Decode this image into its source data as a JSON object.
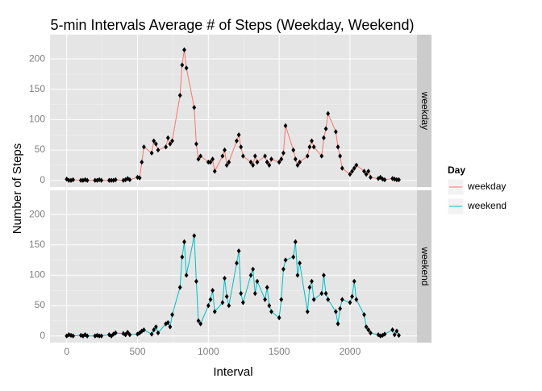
{
  "chart_data": {
    "type": "line",
    "title": "5-min Intervals Average # of Steps (Weekday, Weekend)",
    "x_label": "Interval",
    "y_label": "Number of Steps",
    "legend_title": "Day",
    "x": [
      0,
      15,
      30,
      45,
      100,
      115,
      130,
      145,
      200,
      215,
      230,
      245,
      300,
      315,
      330,
      345,
      400,
      415,
      430,
      445,
      500,
      515,
      530,
      545,
      600,
      615,
      630,
      645,
      700,
      715,
      730,
      745,
      800,
      815,
      830,
      845,
      900,
      915,
      930,
      945,
      1000,
      1015,
      1030,
      1045,
      1100,
      1115,
      1130,
      1145,
      1200,
      1215,
      1230,
      1245,
      1300,
      1315,
      1330,
      1345,
      1400,
      1415,
      1430,
      1445,
      1500,
      1515,
      1530,
      1545,
      1600,
      1615,
      1630,
      1645,
      1700,
      1715,
      1730,
      1745,
      1800,
      1815,
      1830,
      1845,
      1900,
      1915,
      1930,
      1945,
      2000,
      2015,
      2030,
      2045,
      2100,
      2115,
      2130,
      2145,
      2200,
      2215,
      2230,
      2245,
      2300,
      2315,
      2330,
      2345
    ],
    "series": [
      {
        "name": "weekday",
        "color": "#F8766D",
        "values": [
          2,
          0,
          0,
          1,
          0,
          0,
          1,
          0,
          0,
          0,
          1,
          0,
          0,
          0,
          0,
          1,
          0,
          1,
          3,
          1,
          5,
          4,
          30,
          55,
          45,
          65,
          60,
          50,
          55,
          70,
          60,
          65,
          140,
          190,
          215,
          185,
          120,
          60,
          35,
          40,
          30,
          30,
          35,
          15,
          40,
          50,
          25,
          30,
          65,
          75,
          55,
          40,
          30,
          25,
          40,
          30,
          40,
          30,
          25,
          35,
          30,
          35,
          45,
          90,
          50,
          35,
          25,
          30,
          40,
          55,
          65,
          55,
          40,
          70,
          85,
          110,
          80,
          55,
          40,
          20,
          10,
          15,
          20,
          25,
          15,
          10,
          15,
          5,
          3,
          5,
          2,
          1,
          3,
          2,
          1,
          1
        ]
      },
      {
        "name": "weekend",
        "color": "#00BFC4",
        "values": [
          0,
          2,
          1,
          0,
          1,
          0,
          2,
          0,
          0,
          1,
          0,
          0,
          2,
          0,
          3,
          5,
          4,
          2,
          6,
          2,
          3,
          5,
          8,
          10,
          3,
          10,
          15,
          5,
          20,
          22,
          15,
          35,
          80,
          130,
          155,
          100,
          165,
          90,
          25,
          20,
          50,
          60,
          75,
          40,
          55,
          95,
          65,
          50,
          120,
          140,
          70,
          55,
          100,
          110,
          70,
          90,
          60,
          80,
          50,
          40,
          30,
          60,
          110,
          125,
          130,
          155,
          100,
          120,
          40,
          80,
          90,
          60,
          70,
          100,
          70,
          60,
          40,
          20,
          45,
          60,
          55,
          65,
          90,
          60,
          35,
          15,
          10,
          5,
          2,
          0,
          1,
          3,
          10,
          2,
          8,
          1
        ]
      }
    ],
    "xlim": [
      -118,
      2473
    ],
    "ylim": [
      -11,
      240
    ],
    "xticks": [
      0,
      500,
      1000,
      1500,
      2000
    ],
    "yticks": [
      0,
      50,
      100,
      150,
      200
    ],
    "grid": true
  }
}
